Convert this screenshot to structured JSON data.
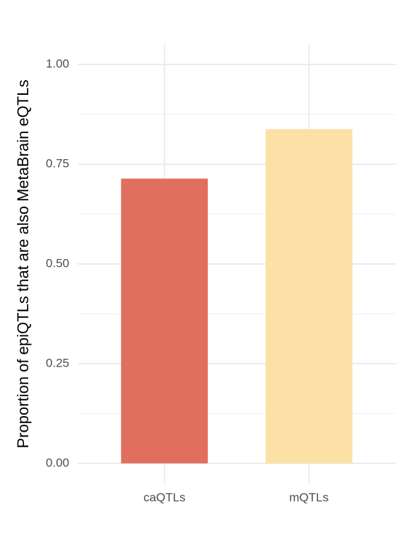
{
  "chart_data": {
    "type": "bar",
    "y_label": "Proportion of epiQTLs that are also MetaBrain eQTLs",
    "categories": [
      "caQTLs",
      "mQTLs"
    ],
    "values": [
      0.714,
      0.838
    ],
    "colors": [
      "#e06f5e",
      "#fde0a6"
    ],
    "ylim": [
      -0.05,
      1.05
    ],
    "yticks": [
      {
        "value": 0,
        "label": "0.00"
      },
      {
        "value": 0.25,
        "label": "0.25"
      },
      {
        "value": 0.5,
        "label": "0.50"
      },
      {
        "value": 0.75,
        "label": "0.75"
      },
      {
        "value": 1,
        "label": "1.00"
      }
    ],
    "y_minor_ticks": [
      0.125,
      0.375,
      0.625,
      0.875
    ],
    "grid": true
  }
}
